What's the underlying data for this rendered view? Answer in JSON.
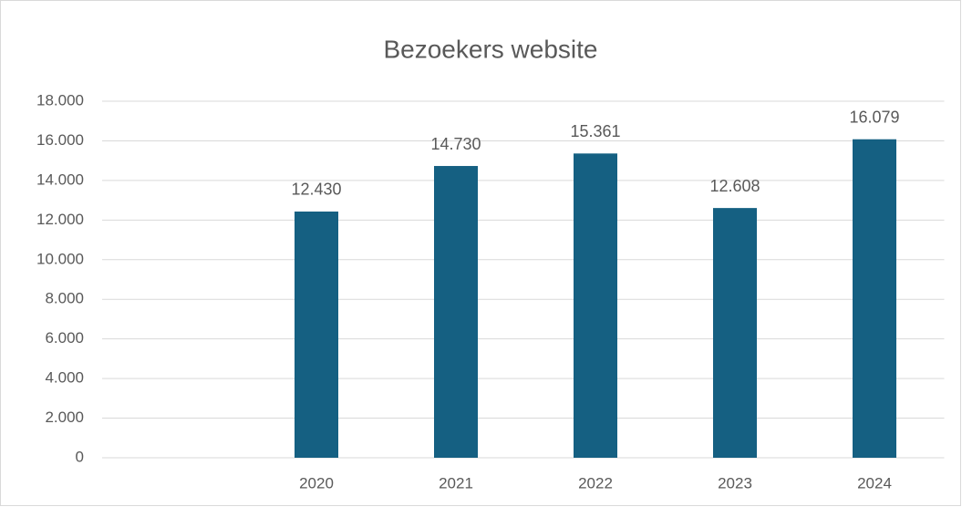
{
  "chart_data": {
    "type": "bar",
    "title": "Bezoekers website",
    "categories": [
      null,
      "2020",
      "2021",
      "2022",
      "2023",
      "2024"
    ],
    "values": [
      null,
      12430,
      14730,
      15361,
      12608,
      16079
    ],
    "value_labels": [
      null,
      "12.430",
      "14.730",
      "15.361",
      "12.608",
      "16.079"
    ],
    "color": "#156082",
    "ylim": [
      0,
      18000
    ],
    "yticks": [
      0,
      {
        "value": 2000,
        "label": "2.000"
      },
      {
        "value": 4000,
        "label": "4.000"
      },
      {
        "value": 6000,
        "label": "6.000"
      },
      {
        "value": 8000,
        "label": "8.000"
      },
      {
        "value": 10000,
        "label": "10.000"
      },
      {
        "value": 12000,
        "label": "12.000"
      },
      {
        "value": 14000,
        "label": "14.000"
      },
      {
        "value": 16000,
        "label": "16.000"
      },
      {
        "value": 18000,
        "label": "18.000"
      }
    ],
    "grid": true
  }
}
